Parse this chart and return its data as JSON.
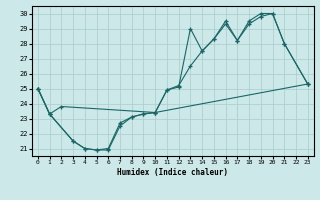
{
  "xlabel": "Humidex (Indice chaleur)",
  "xlim": [
    -0.5,
    23.5
  ],
  "ylim": [
    20.5,
    30.5
  ],
  "xticks": [
    0,
    1,
    2,
    3,
    4,
    5,
    6,
    7,
    8,
    9,
    10,
    11,
    12,
    13,
    14,
    15,
    16,
    17,
    18,
    19,
    20,
    21,
    22,
    23
  ],
  "yticks": [
    21,
    22,
    23,
    24,
    25,
    26,
    27,
    28,
    29,
    30
  ],
  "bg_color": "#cce8e8",
  "grid_color": "#aacccc",
  "line_color": "#1a6666",
  "line1_x": [
    0,
    1,
    2,
    10,
    23
  ],
  "line1_y": [
    25.0,
    23.3,
    23.8,
    23.4,
    25.3
  ],
  "line2_x": [
    0,
    1,
    3,
    4,
    5,
    6,
    7,
    8,
    9,
    10,
    11,
    12,
    13,
    14,
    15,
    16,
    17,
    18,
    19,
    20,
    21,
    23
  ],
  "line2_y": [
    25.0,
    23.3,
    21.5,
    21.0,
    20.9,
    20.9,
    22.5,
    23.1,
    23.3,
    23.4,
    24.9,
    25.1,
    29.0,
    27.5,
    28.3,
    29.5,
    28.2,
    29.5,
    30.0,
    30.0,
    28.0,
    25.3
  ],
  "line3_x": [
    0,
    1,
    3,
    4,
    5,
    6,
    7,
    8,
    9,
    10,
    11,
    12,
    13,
    14,
    15,
    16,
    17,
    18,
    19,
    20,
    21,
    23
  ],
  "line3_y": [
    25.0,
    23.3,
    21.5,
    21.0,
    20.9,
    21.0,
    22.7,
    23.1,
    23.3,
    23.4,
    24.9,
    25.2,
    26.5,
    27.5,
    28.3,
    29.3,
    28.2,
    29.3,
    29.8,
    30.0,
    28.0,
    25.3
  ]
}
